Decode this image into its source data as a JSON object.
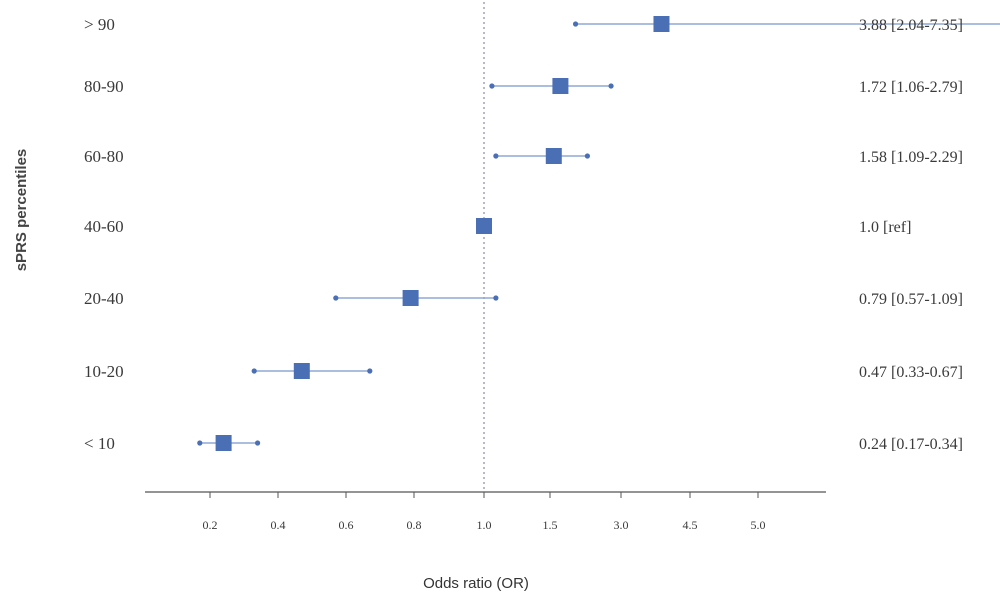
{
  "chart_data": {
    "type": "forest",
    "ylabel": "sPRS percentiles",
    "xlabel": "Odds ratio (OR)",
    "x_ticks": [
      "0.2",
      "0.4",
      "0.6",
      "0.8",
      "1.0",
      "1.5",
      "3.0",
      "4.5",
      "5.0"
    ],
    "reference_value": 1.0,
    "colors": {
      "marker": "#4a6fb5",
      "whisker": "#8fa8d6",
      "reference_line": "#8a8aaa",
      "axis": "#555555"
    },
    "rows": [
      {
        "label": "> 90",
        "or": 3.88,
        "ci_low": 2.04,
        "ci_high": 7.35,
        "text": "3.88 [2.04-7.35]"
      },
      {
        "label": "80-90",
        "or": 1.72,
        "ci_low": 1.06,
        "ci_high": 2.79,
        "text": "1.72 [1.06-2.79]"
      },
      {
        "label": "60-80",
        "or": 1.58,
        "ci_low": 1.09,
        "ci_high": 2.29,
        "text": "1.58 [1.09-2.29]"
      },
      {
        "label": "40-60",
        "or": 1.0,
        "ci_low": null,
        "ci_high": null,
        "text": "1.0 [ref]"
      },
      {
        "label": "20-40",
        "or": 0.79,
        "ci_low": 0.57,
        "ci_high": 1.09,
        "text": "0.79 [0.57-1.09]"
      },
      {
        "label": "10-20",
        "or": 0.47,
        "ci_low": 0.33,
        "ci_high": 0.67,
        "text": "0.47 [0.33-0.67]"
      },
      {
        "label": "< 10",
        "or": 0.24,
        "ci_low": 0.17,
        "ci_high": 0.34,
        "text": "0.24 [0.17-0.34]"
      }
    ]
  }
}
